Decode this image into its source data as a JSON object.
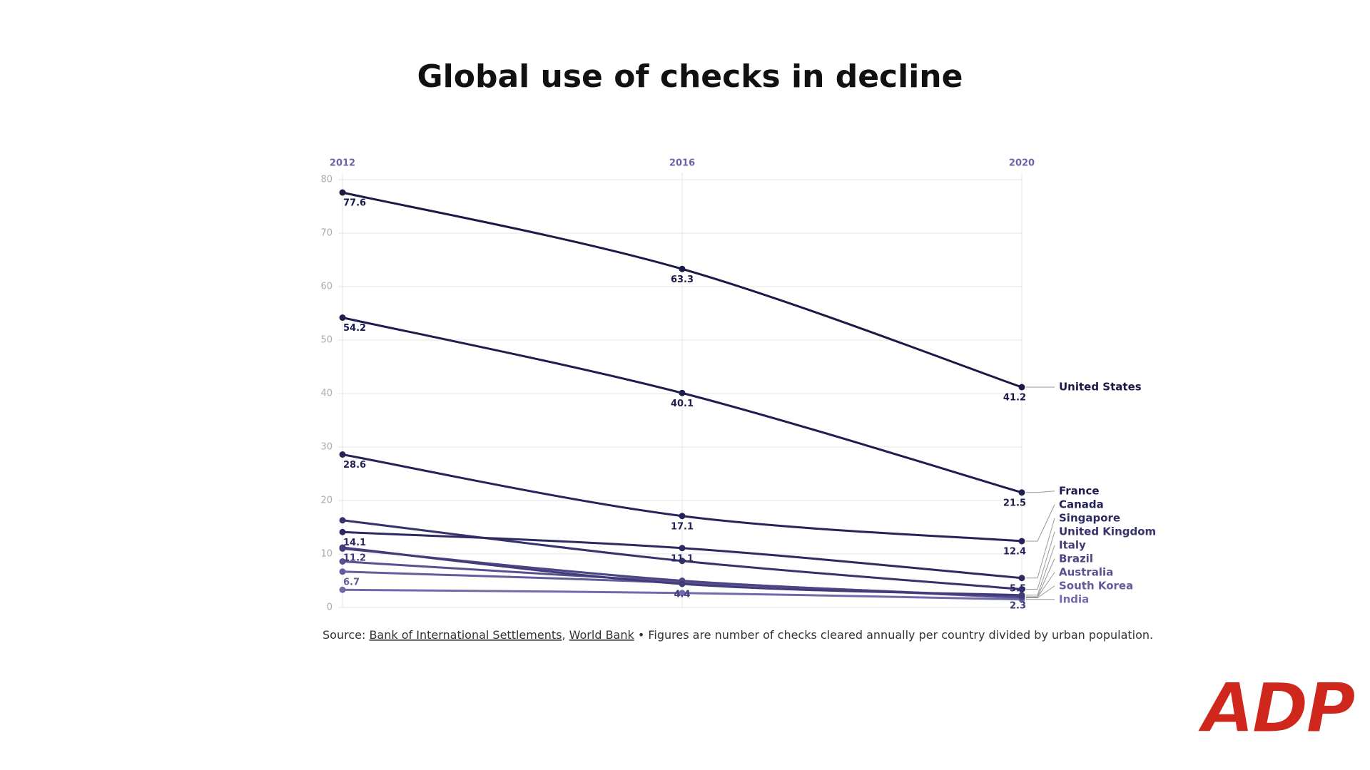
{
  "chart_data": {
    "type": "line",
    "title": "Global use of checks in decline",
    "x": [
      2012,
      2016,
      2020
    ],
    "xlim": [
      2012,
      2020
    ],
    "xticks": [
      2012,
      2016,
      2020
    ],
    "ylim": [
      0,
      80
    ],
    "yticks": [
      0,
      10,
      20,
      30,
      40,
      50,
      60,
      70,
      80
    ],
    "grid": true,
    "series": [
      {
        "name": "United States",
        "color": "#1a1947",
        "values": [
          77.6,
          63.3,
          41.2
        ],
        "value_labels": [
          "77.6",
          "63.3",
          "41.2"
        ]
      },
      {
        "name": "France",
        "color": "#1f1d4f",
        "values": [
          54.2,
          40.1,
          21.5
        ],
        "value_labels": [
          "54.2",
          "40.1",
          "21.5"
        ]
      },
      {
        "name": "Canada",
        "color": "#262358",
        "values": [
          28.6,
          17.1,
          12.4
        ],
        "value_labels": [
          "28.6",
          "17.1",
          "12.4"
        ]
      },
      {
        "name": "Singapore",
        "color": "#2d2a62",
        "values": [
          14.1,
          11.1,
          5.5
        ],
        "value_labels": [
          "14.1",
          "11.1",
          "5.5"
        ]
      },
      {
        "name": "United Kingdom",
        "color": "#36326c",
        "values": [
          16.3,
          8.7,
          3.4
        ],
        "value_labels": [
          null,
          null,
          null
        ]
      },
      {
        "name": "Italy",
        "color": "#413c78",
        "values": [
          11.2,
          4.4,
          2.3
        ],
        "value_labels": [
          "11.2",
          "4.4",
          "2.3"
        ]
      },
      {
        "name": "Brazil",
        "color": "#4c4684",
        "values": [
          11.0,
          5.0,
          2.0
        ],
        "value_labels": [
          null,
          null,
          null
        ]
      },
      {
        "name": "Australia",
        "color": "#575190",
        "values": [
          8.6,
          4.8,
          1.9
        ],
        "value_labels": [
          null,
          null,
          null
        ]
      },
      {
        "name": "South Korea",
        "color": "#635d9d",
        "values": [
          6.7,
          4.6,
          1.8
        ],
        "value_labels": [
          "6.7",
          null,
          null
        ]
      },
      {
        "name": "India",
        "color": "#7169ab",
        "values": [
          3.3,
          2.7,
          1.5
        ],
        "value_labels": [
          null,
          null,
          null
        ]
      }
    ]
  },
  "source": {
    "prefix": "Source:",
    "links": [
      "Bank of International Settlements",
      "World Bank"
    ],
    "separator": ",",
    "note": "• Figures are number of checks cleared annually per country divided by urban population."
  },
  "logo": "ADP"
}
